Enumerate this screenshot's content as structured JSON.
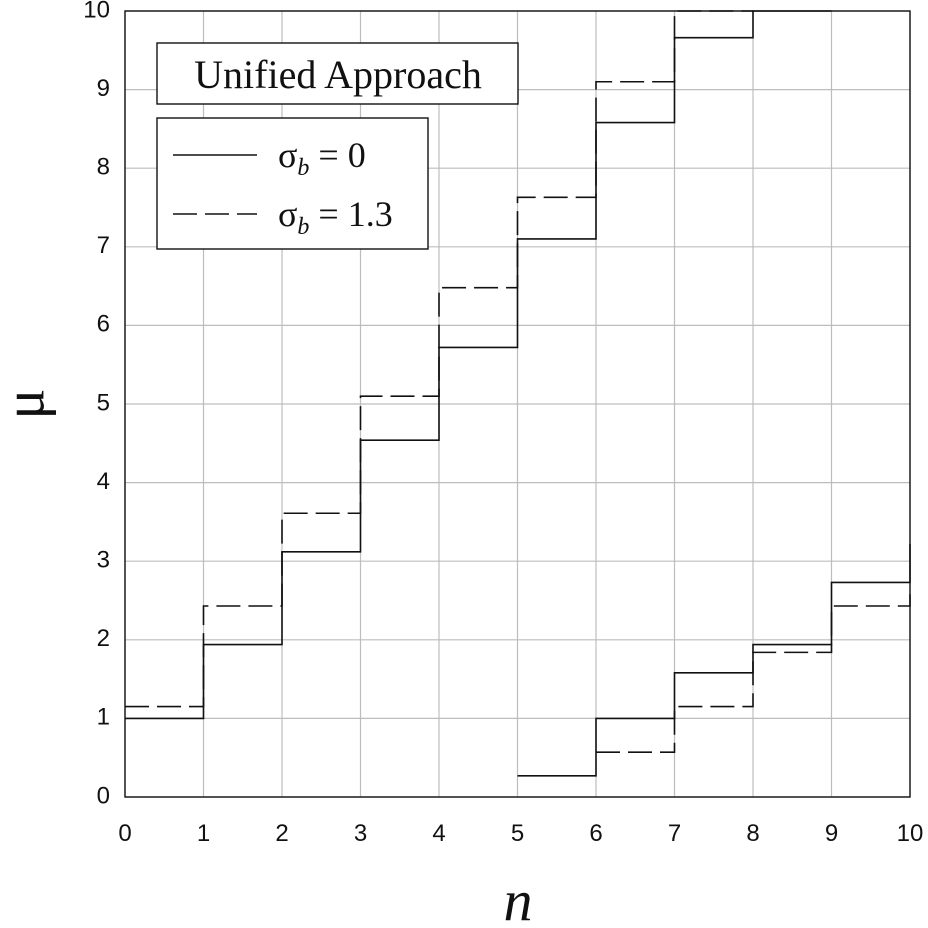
{
  "chart_data": {
    "type": "line",
    "title": "Unified Approach",
    "xlabel": "n",
    "ylabel": "μ",
    "xlim": [
      0,
      10
    ],
    "ylim": [
      0,
      10
    ],
    "x_ticks": [
      "0",
      "1",
      "2",
      "3",
      "4",
      "5",
      "6",
      "7",
      "8",
      "9",
      "10"
    ],
    "y_ticks": [
      "0",
      "1",
      "2",
      "3",
      "4",
      "5",
      "6",
      "7",
      "8",
      "9",
      "10"
    ],
    "grid": true,
    "legend_position": "top-left",
    "step": "post",
    "series": [
      {
        "name": "σb = 0",
        "name_main": "σ",
        "name_sub": "b",
        "name_rest": " = 0",
        "style": "solid",
        "upper": {
          "x": [
            0,
            1,
            2,
            3,
            4,
            5,
            6,
            7,
            8
          ],
          "y": [
            1.0,
            1.94,
            3.12,
            4.54,
            5.72,
            7.1,
            8.58,
            9.66,
            10.0
          ]
        },
        "lower": {
          "x": [
            5,
            6,
            7,
            8,
            9,
            10
          ],
          "y": [
            0.27,
            1.0,
            1.58,
            1.94,
            2.73,
            3.22
          ]
        }
      },
      {
        "name": "σb = 1.3",
        "name_main": "σ",
        "name_sub": "b",
        "name_rest": " = 1.3",
        "style": "dashed",
        "upper": {
          "x": [
            0,
            1,
            2,
            3,
            4,
            5,
            6,
            7
          ],
          "y": [
            1.15,
            2.43,
            3.61,
            5.1,
            6.48,
            7.63,
            9.1,
            10.0
          ]
        },
        "lower": {
          "x": [
            6,
            7,
            8,
            9,
            10
          ],
          "y": [
            0.57,
            1.15,
            1.84,
            2.43,
            2.6
          ]
        }
      }
    ]
  }
}
